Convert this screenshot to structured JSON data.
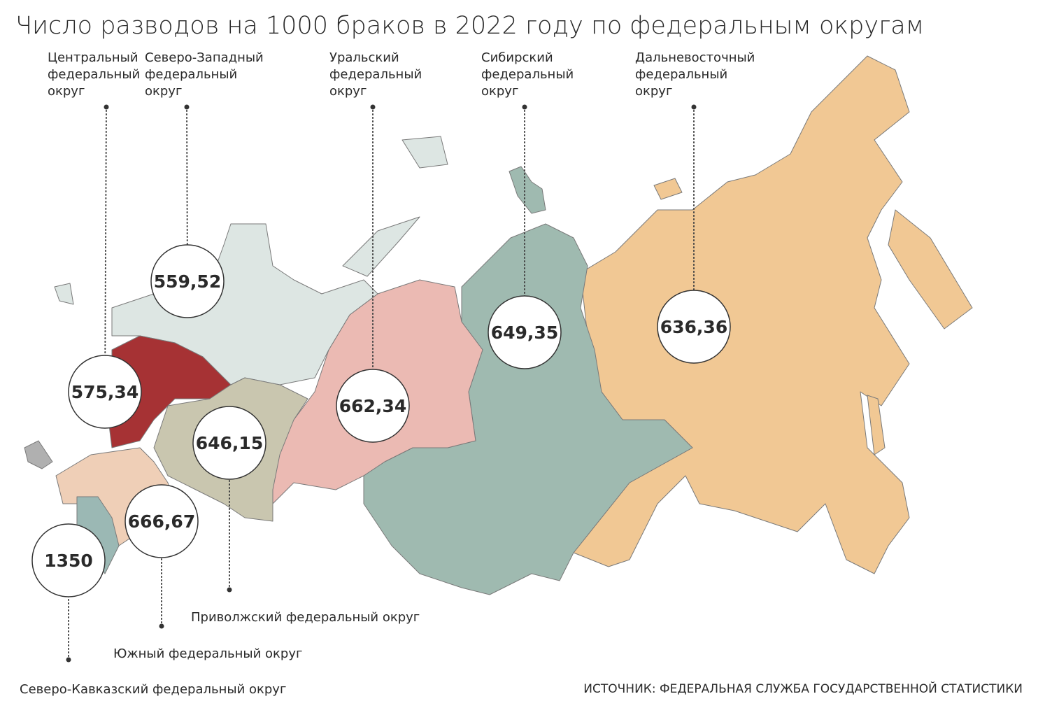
{
  "title": "Число разводов на 1000 браков в 2022 году по федеральным округам",
  "districts": [
    {
      "label": [
        "Центральный",
        "федеральный",
        "округ"
      ],
      "value": "575,34"
    },
    {
      "label": [
        "Северо-Западный",
        "федеральный",
        "округ"
      ],
      "value": "559,52"
    },
    {
      "label": [
        "Уральский",
        "федеральный",
        "округ"
      ],
      "value": "662,34"
    },
    {
      "label": [
        "Сибирский",
        "федеральный",
        "округ"
      ],
      "value": "649,35"
    },
    {
      "label": [
        "Дальневосточный",
        "федеральный",
        "округ"
      ],
      "value": "636,36"
    },
    {
      "label": [
        "Приволжский федеральный округ"
      ],
      "value": "646,15"
    },
    {
      "label": [
        "Южный федеральный округ"
      ],
      "value": "666,67"
    },
    {
      "label": [
        "Северо-Кавказский федеральный округ"
      ],
      "value": "1350"
    }
  ],
  "source": "ИСТОЧНИК: ФЕДЕРАЛЬНАЯ СЛУЖБА ГОСУДАРСТВЕННОЙ СТАТИСТИКИ"
}
